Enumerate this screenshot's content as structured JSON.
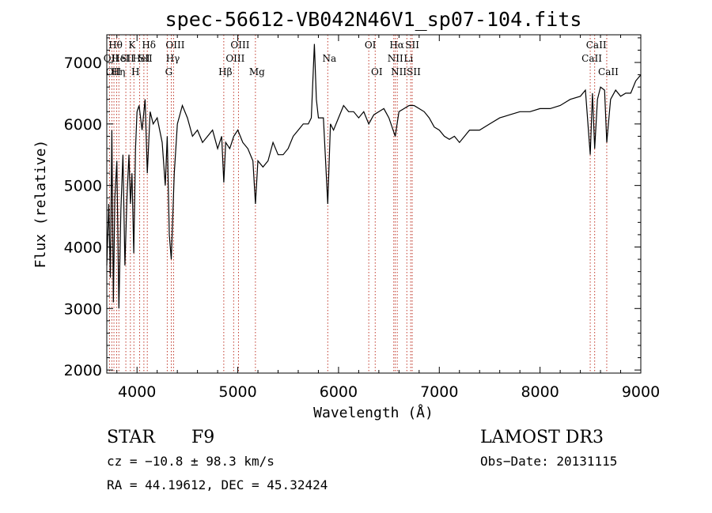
{
  "chart_data": {
    "type": "line",
    "title": "spec-56612-VB042N46V1_sp07-104.fits",
    "xlabel": "Wavelength (Å)",
    "ylabel": "Flux (relative)",
    "xlim": [
      3700,
      9000
    ],
    "ylim": [
      1950,
      7450
    ],
    "x_ticks": [
      4000,
      5000,
      6000,
      7000,
      8000,
      9000
    ],
    "y_ticks": [
      2000,
      3000,
      4000,
      5000,
      6000,
      7000
    ],
    "series": [
      {
        "name": "spectrum",
        "x": [
          3700,
          3720,
          3735,
          3750,
          3765,
          3780,
          3800,
          3820,
          3840,
          3860,
          3880,
          3900,
          3920,
          3935,
          3950,
          3968,
          3985,
          4000,
          4020,
          4050,
          4080,
          4102,
          4130,
          4160,
          4200,
          4250,
          4280,
          4300,
          4320,
          4340,
          4370,
          4400,
          4450,
          4500,
          4550,
          4600,
          4650,
          4700,
          4750,
          4800,
          4840,
          4861,
          4880,
          4920,
          4960,
          5000,
          5050,
          5100,
          5150,
          5175,
          5200,
          5250,
          5300,
          5350,
          5400,
          5450,
          5500,
          5550,
          5600,
          5650,
          5700,
          5730,
          5760,
          5780,
          5800,
          5850,
          5893,
          5920,
          5950,
          6000,
          6050,
          6100,
          6150,
          6200,
          6250,
          6300,
          6350,
          6400,
          6450,
          6500,
          6563,
          6600,
          6650,
          6700,
          6750,
          6800,
          6850,
          6900,
          6950,
          7000,
          7050,
          7100,
          7150,
          7200,
          7300,
          7400,
          7500,
          7600,
          7700,
          7800,
          7900,
          8000,
          8100,
          8200,
          8300,
          8400,
          8450,
          8498,
          8520,
          8542,
          8570,
          8600,
          8640,
          8662,
          8700,
          8750,
          8800,
          8850,
          8900,
          8950,
          9000
        ],
        "values": [
          3700,
          4700,
          3500,
          5900,
          3100,
          4800,
          5400,
          3000,
          4600,
          5500,
          3700,
          4800,
          5500,
          4700,
          5200,
          3900,
          5600,
          6200,
          6300,
          5900,
          6400,
          5200,
          6200,
          6000,
          6100,
          5700,
          5000,
          5800,
          4200,
          3800,
          5200,
          6000,
          6300,
          6100,
          5800,
          5900,
          5700,
          5800,
          5900,
          5600,
          5800,
          5050,
          5700,
          5600,
          5800,
          5900,
          5700,
          5600,
          5400,
          4700,
          5400,
          5300,
          5400,
          5700,
          5500,
          5500,
          5600,
          5800,
          5900,
          6000,
          6000,
          6100,
          7300,
          6400,
          6100,
          6100,
          4700,
          6000,
          5900,
          6100,
          6300,
          6200,
          6200,
          6100,
          6200,
          6000,
          6150,
          6200,
          6250,
          6100,
          5800,
          6200,
          6250,
          6300,
          6300,
          6250,
          6200,
          6100,
          5950,
          5900,
          5800,
          5750,
          5800,
          5700,
          5900,
          5900,
          6000,
          6100,
          6150,
          6200,
          6200,
          6250,
          6250,
          6300,
          6400,
          6450,
          6550,
          5500,
          6500,
          5600,
          6400,
          6600,
          6550,
          5700,
          6400,
          6550,
          6450,
          6500,
          6500,
          6700,
          6800
        ]
      }
    ],
    "line_markers": [
      {
        "x": 3727,
        "label": "OII",
        "row": 2
      },
      {
        "x": 3750,
        "label": "OII",
        "row": 3
      },
      {
        "x": 3771,
        "label": "Hθ",
        "row": 1
      },
      {
        "x": 3798,
        "label": "Hη",
        "row": 3
      },
      {
        "x": 3820,
        "label": "HeI",
        "row": 2
      },
      {
        "x": 3889,
        "label": "SII",
        "row": 2
      },
      {
        "x": 3934,
        "label": "K",
        "row": 1
      },
      {
        "x": 3969,
        "label": "H",
        "row": 3
      },
      {
        "x": 4026,
        "label": "HeI",
        "row": 2
      },
      {
        "x": 4068,
        "label": "SII",
        "row": 2
      },
      {
        "x": 4102,
        "label": "Hδ",
        "row": 1
      },
      {
        "x": 4300,
        "label": "G",
        "row": 3
      },
      {
        "x": 4340,
        "label": "Hγ",
        "row": 2
      },
      {
        "x": 4363,
        "label": "OIII",
        "row": 1
      },
      {
        "x": 4861,
        "label": "Hβ",
        "row": 3
      },
      {
        "x": 4959,
        "label": "OIII",
        "row": 2
      },
      {
        "x": 5007,
        "label": "OIII",
        "row": 1
      },
      {
        "x": 5175,
        "label": "Mg",
        "row": 3
      },
      {
        "x": 5893,
        "label": "Na",
        "row": 2
      },
      {
        "x": 6300,
        "label": "OI",
        "row": 1
      },
      {
        "x": 6364,
        "label": "OI",
        "row": 3
      },
      {
        "x": 6548,
        "label": "NII",
        "row": 2
      },
      {
        "x": 6563,
        "label": "Hα",
        "row": 1
      },
      {
        "x": 6583,
        "label": "NII",
        "row": 3
      },
      {
        "x": 6678,
        "label": "Li",
        "row": 2
      },
      {
        "x": 6716,
        "label": "SII",
        "row": 1
      },
      {
        "x": 6731,
        "label": "SII",
        "row": 3
      },
      {
        "x": 8498,
        "label": "CaII",
        "row": 2
      },
      {
        "x": 8542,
        "label": "CaII",
        "row": 1
      },
      {
        "x": 8662,
        "label": "CaII",
        "row": 3
      }
    ]
  },
  "info": {
    "class": "STAR",
    "subclass": "F9",
    "survey": "LAMOST DR3",
    "cz": "cz = −10.8 ± 98.3 km/s",
    "obs_date": "Obs−Date: 20131115",
    "coords": "RA =  44.19612, DEC =  45.32424"
  },
  "colors": {
    "marker": "#c0392b",
    "spectrum": "#000000"
  }
}
